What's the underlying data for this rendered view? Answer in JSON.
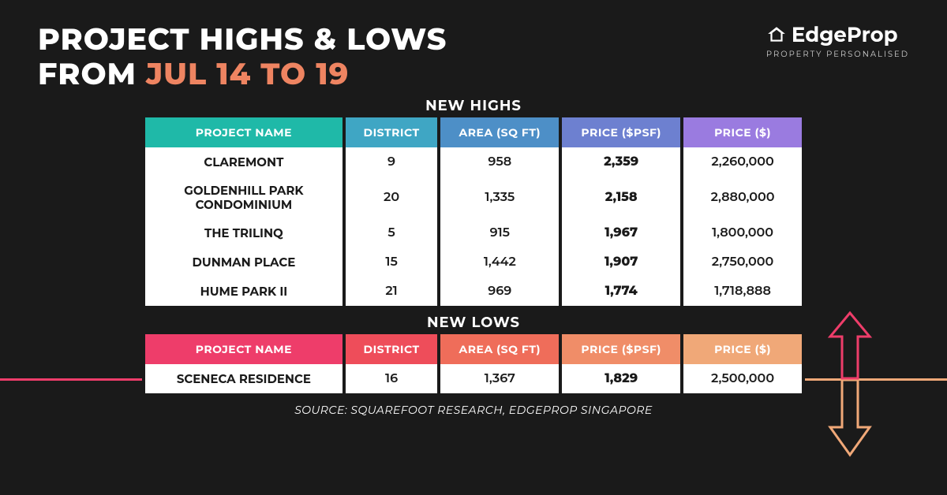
{
  "header": {
    "title_line1": "PROJECT HIGHS & LOWS",
    "title_line2_prefix": "FROM ",
    "title_line2_accent": "JUL 14 TO 19",
    "logo_text": "EdgeProp",
    "tagline": "PROPERTY PERSONALISED"
  },
  "sections": {
    "highs_label": "NEW HIGHS",
    "lows_label": "NEW LOWS"
  },
  "columns": {
    "project": "PROJECT NAME",
    "district": "DISTRICT",
    "area": "AREA (SQ FT)",
    "psf": "PRICE ($PSF)",
    "price": "PRICE ($)"
  },
  "highs_header_colors": [
    "#1fb9a8",
    "#3fa6c4",
    "#4d8fc7",
    "#6d80d0",
    "#9a7be0"
  ],
  "lows_header_colors": [
    "#ee3d6a",
    "#ee4d5a",
    "#ef6d5a",
    "#f08d68",
    "#f0a878"
  ],
  "highs": [
    {
      "name": "CLAREMONT",
      "district": "9",
      "area": "958",
      "psf": "2,359",
      "price": "2,260,000"
    },
    {
      "name": "GOLDENHILL PARK CONDOMINIUM",
      "district": "20",
      "area": "1,335",
      "psf": "2,158",
      "price": "2,880,000"
    },
    {
      "name": "THE TRILINQ",
      "district": "5",
      "area": "915",
      "psf": "1,967",
      "price": "1,800,000"
    },
    {
      "name": "DUNMAN PLACE",
      "district": "15",
      "area": "1,442",
      "psf": "1,907",
      "price": "2,750,000"
    },
    {
      "name": "HUME PARK II",
      "district": "21",
      "area": "969",
      "psf": "1,774",
      "price": "1,718,888"
    }
  ],
  "lows": [
    {
      "name": "SCENECA RESIDENCE",
      "district": "16",
      "area": "1,367",
      "psf": "1,829",
      "price": "2,500,000"
    }
  ],
  "source": "SOURCE: SQUAREFOOT RESEARCH, EDGEPROP SINGAPORE",
  "decor": {
    "arrow_up_color": "#ee3d6a",
    "arrow_down_color": "#f0a878"
  }
}
